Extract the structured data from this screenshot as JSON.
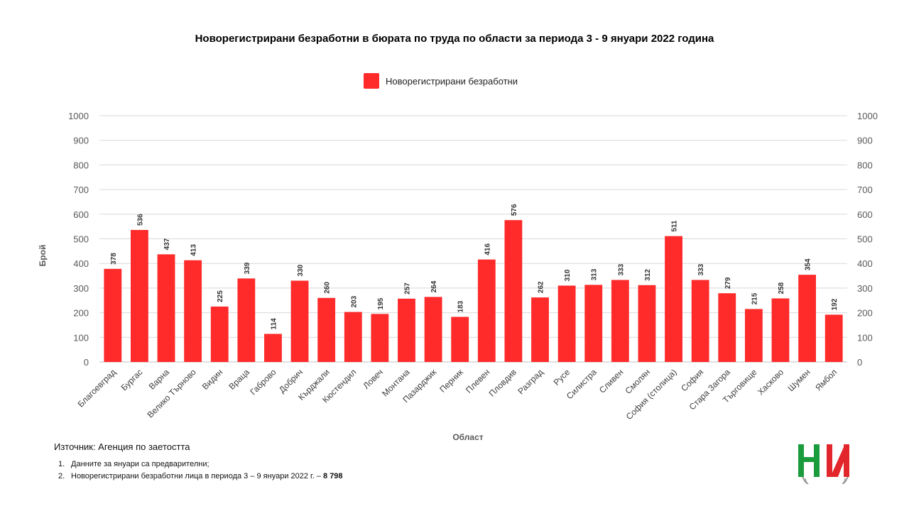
{
  "chart_data": {
    "type": "bar",
    "title": "Новорегистрирани безработни в бюрата по труда по области за периода 3 - 9 януари 2022 година",
    "xlabel": "Област",
    "ylabel": "Брой",
    "ylim": [
      0,
      1000
    ],
    "yticks": [
      "0",
      "100",
      "200",
      "300",
      "400",
      "500",
      "600",
      "700",
      "800",
      "900",
      "1000"
    ],
    "secondary_axis": true,
    "grid": true,
    "legend_position": "top-center",
    "categories": [
      "Благоевград",
      "Бургас",
      "Варна",
      "Велико Търново",
      "Видин",
      "Враца",
      "Габрово",
      "Добрич",
      "Кърджали",
      "Кюстендил",
      "Ловеч",
      "Монтана",
      "Пазарджик",
      "Перник",
      "Плевен",
      "Пловдив",
      "Разград",
      "Русе",
      "Силистра",
      "Сливен",
      "Смолян",
      "София (столица)",
      "София",
      "Стара Загора",
      "Търговище",
      "Хасково",
      "Шумен",
      "Ямбол"
    ],
    "series": [
      {
        "name": "Новорегистрирани безработни",
        "color": "#ff2a2a",
        "values": [
          378,
          536,
          437,
          413,
          225,
          339,
          114,
          330,
          260,
          203,
          195,
          257,
          264,
          183,
          416,
          576,
          262,
          310,
          313,
          333,
          312,
          511,
          333,
          279,
          215,
          258,
          354,
          192
        ]
      }
    ]
  },
  "footer": {
    "source": "Източник: Агенция по заетостта",
    "notes": [
      {
        "num": "1.",
        "text": "Данните за януари са предварителни;",
        "bold": ""
      },
      {
        "num": "2.",
        "text": "Новорегистрирани безработни лица в периода 3 – 9 януари 2022 г. – ",
        "bold": "8 798"
      }
    ]
  },
  "logo": {
    "name": "ni-logo",
    "colors": [
      "#1a9b3c",
      "#e3262b"
    ]
  }
}
